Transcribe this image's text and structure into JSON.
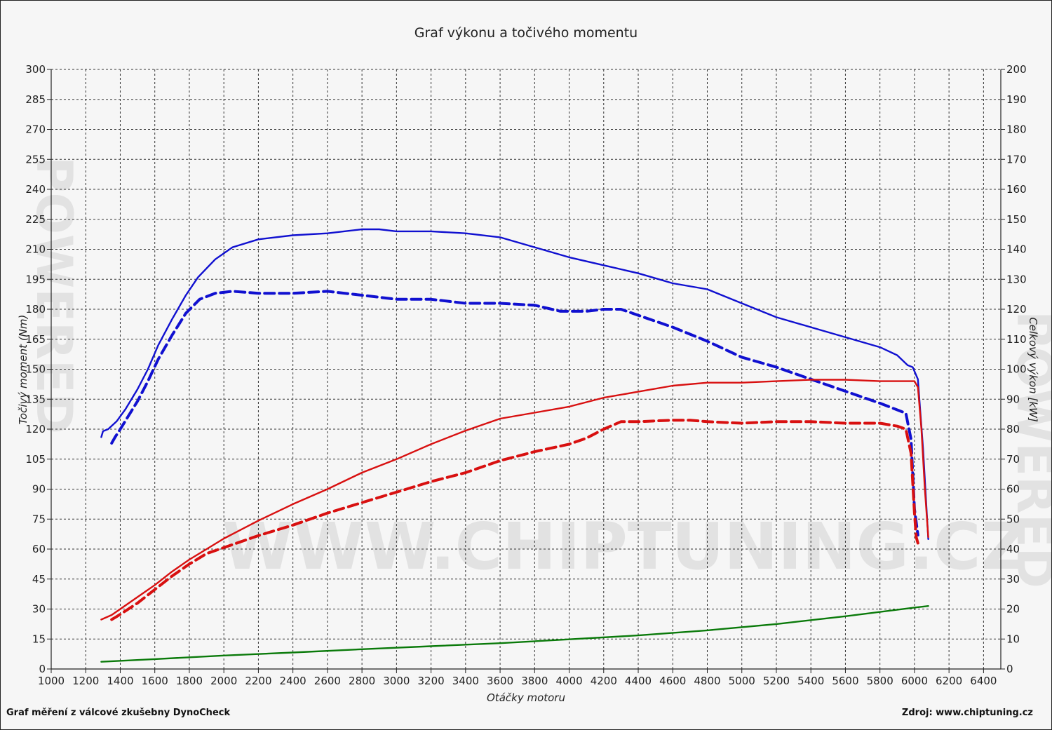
{
  "watermark": {
    "main": "WWW.CHIPTUNING.CZ",
    "side": "POWERED"
  },
  "footer": {
    "left": "Graf měření z válcové zkušebny DynoCheck",
    "right": "Zdroj: www.chiptuning.cz"
  },
  "chart_data": {
    "type": "line",
    "title": "Graf výkonu a točivého momentu",
    "xlabel": "Otáčky motoru",
    "ylabel_left": "Točivý moment (Nm)",
    "ylabel_right": "Celkový výkon [kW]",
    "xlim": [
      1000,
      6500
    ],
    "x_ticks": [
      1000,
      1200,
      1400,
      1600,
      1800,
      2000,
      2200,
      2400,
      2600,
      2800,
      3000,
      3200,
      3400,
      3600,
      3800,
      4000,
      4200,
      4400,
      4600,
      4800,
      5000,
      5200,
      5400,
      5600,
      5800,
      6000,
      6200,
      6400
    ],
    "ylim_left": [
      0,
      300
    ],
    "y_ticks_left": [
      0,
      15,
      30,
      45,
      60,
      75,
      90,
      105,
      120,
      135,
      150,
      165,
      180,
      195,
      210,
      225,
      240,
      255,
      270,
      285,
      300
    ],
    "ylim_right": [
      0,
      200
    ],
    "y_ticks_right": [
      0,
      10,
      20,
      30,
      40,
      50,
      60,
      70,
      80,
      90,
      100,
      110,
      120,
      130,
      140,
      150,
      160,
      170,
      180,
      190,
      200
    ],
    "grid": true,
    "colors": {
      "torque_tuned": "#1010d0",
      "power_tuned": "#d81010",
      "losses": "#0a7a0a"
    },
    "series": [
      {
        "key": "torque_tuned",
        "axis": "left",
        "color": "#1010d0",
        "dash": false,
        "x": [
          1290,
          1300,
          1330,
          1380,
          1430,
          1500,
          1560,
          1620,
          1700,
          1780,
          1850,
          1950,
          2050,
          2200,
          2400,
          2600,
          2800,
          2900,
          3000,
          3200,
          3400,
          3600,
          3800,
          4000,
          4200,
          4400,
          4600,
          4800,
          5000,
          5200,
          5400,
          5600,
          5800,
          5900,
          5960,
          5990,
          6020,
          6050,
          6080
        ],
        "y": [
          116,
          119,
          120,
          124,
          130,
          140,
          150,
          162,
          175,
          187,
          196,
          205,
          211,
          215,
          217,
          218,
          220,
          220,
          219,
          219,
          218,
          216,
          211,
          206,
          202,
          198,
          193,
          190,
          183,
          176,
          171,
          166,
          161,
          157,
          152,
          151,
          145,
          110,
          65
        ]
      },
      {
        "key": "torque_stock",
        "axis": "left",
        "color": "#1010d0",
        "dash": true,
        "x": [
          1350,
          1370,
          1400,
          1450,
          1500,
          1560,
          1620,
          1700,
          1780,
          1860,
          1950,
          2050,
          2200,
          2400,
          2600,
          2800,
          3000,
          3200,
          3400,
          3600,
          3800,
          3950,
          4100,
          4200,
          4300,
          4400,
          4600,
          4800,
          5000,
          5200,
          5400,
          5600,
          5800,
          5920,
          5950,
          5980,
          6000,
          6020
        ],
        "y": [
          113,
          116,
          120,
          127,
          134,
          144,
          155,
          167,
          178,
          185,
          188,
          189,
          188,
          188,
          189,
          187,
          185,
          185,
          183,
          183,
          182,
          179,
          179,
          180,
          180,
          177,
          171,
          164,
          156,
          151,
          145,
          139,
          133,
          129,
          128,
          115,
          80,
          67
        ]
      },
      {
        "key": "power_tuned",
        "axis": "right",
        "color": "#d81010",
        "dash": false,
        "x": [
          1290,
          1350,
          1400,
          1500,
          1600,
          1700,
          1800,
          1900,
          2000,
          2200,
          2400,
          2600,
          2800,
          3000,
          3200,
          3400,
          3600,
          3800,
          4000,
          4200,
          4400,
          4600,
          4800,
          5000,
          5200,
          5400,
          5600,
          5800,
          5900,
          5960,
          6000,
          6020,
          6040,
          6060,
          6080
        ],
        "y": [
          16.5,
          18,
          20,
          24,
          28,
          32.5,
          36.5,
          40,
          43.5,
          49.5,
          55,
          60,
          65.5,
          70,
          75,
          79.5,
          83.5,
          85.5,
          87.5,
          90.5,
          92.5,
          94.5,
          95.5,
          95.5,
          96,
          96.5,
          96.5,
          96,
          96,
          96,
          96,
          94,
          80,
          60,
          44
        ]
      },
      {
        "key": "power_stock",
        "axis": "right",
        "color": "#d81010",
        "dash": true,
        "x": [
          1350,
          1380,
          1420,
          1500,
          1600,
          1700,
          1800,
          1900,
          2000,
          2200,
          2400,
          2600,
          2800,
          3000,
          3200,
          3400,
          3600,
          3800,
          4000,
          4100,
          4200,
          4300,
          4400,
          4600,
          4700,
          4800,
          5000,
          5200,
          5400,
          5600,
          5800,
          5900,
          5950,
          5980,
          6000,
          6010,
          6020
        ],
        "y": [
          16.5,
          17.5,
          19,
          22,
          26.5,
          31,
          35,
          38.5,
          40.5,
          44.5,
          48,
          52,
          55.5,
          59,
          62.5,
          65.5,
          69.5,
          72.5,
          75,
          77,
          80,
          82.5,
          82.5,
          83,
          83,
          82.5,
          82,
          82.5,
          82.5,
          82,
          82,
          81,
          80,
          72,
          52,
          44,
          42
        ]
      },
      {
        "key": "losses",
        "axis": "right",
        "color": "#0a7a0a",
        "dash": false,
        "x": [
          1290,
          1600,
          2000,
          2400,
          2800,
          3200,
          3600,
          4000,
          4400,
          4800,
          5200,
          5600,
          6000,
          6080
        ],
        "y": [
          2.4,
          3.3,
          4.5,
          5.5,
          6.6,
          7.6,
          8.6,
          9.9,
          11.2,
          12.9,
          15,
          17.6,
          20.5,
          21
        ]
      }
    ]
  }
}
